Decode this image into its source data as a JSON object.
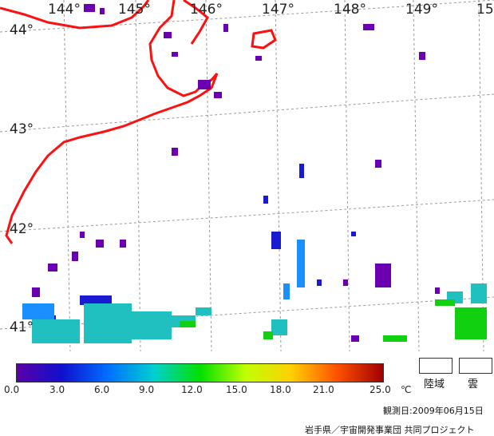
{
  "map": {
    "lon_labels": [
      "144°",
      "145°",
      "146°",
      "147°",
      "148°",
      "149°",
      "15"
    ],
    "lat_labels": [
      "44°",
      "43°",
      "42°",
      "41°"
    ],
    "colors": {
      "coast": "#ff1010",
      "grid": "#999999"
    }
  },
  "legend": {
    "ticks": [
      "0.0",
      "3.0",
      "6.0",
      "9.0",
      "12.0",
      "15.0",
      "18.0",
      "21.0",
      "25.0"
    ],
    "unit": "℃",
    "gradient": [
      "#5a00a8",
      "#1010d0",
      "#0070ff",
      "#00d0d0",
      "#00e000",
      "#c0ff00",
      "#ffd000",
      "#ff5000",
      "#a00000"
    ],
    "land_label": "陸域",
    "cloud_label": "雲"
  },
  "footer": {
    "date": "観測日:2009年06月15日",
    "credit": "岩手県／宇宙開発事業団 共同プロジェクト"
  }
}
